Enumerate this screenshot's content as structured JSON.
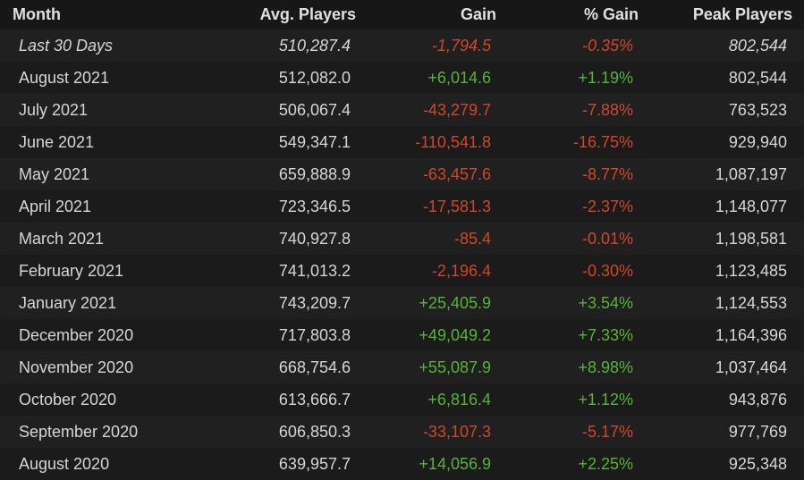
{
  "table": {
    "header": [
      "Month",
      "Avg. Players",
      "Gain",
      "% Gain",
      "Peak Players"
    ],
    "rows": [
      [
        "Last 30 Days",
        "510,287.4",
        "-1,794.5",
        "-0.35%",
        "802,544"
      ],
      [
        "August 2021",
        "512,082.0",
        "+6,014.6",
        "+1.19%",
        "802,544"
      ],
      [
        "July 2021",
        "506,067.4",
        "-43,279.7",
        "-7.88%",
        "763,523"
      ],
      [
        "June 2021",
        "549,347.1",
        "-110,541.8",
        "-16.75%",
        "929,940"
      ],
      [
        "May 2021",
        "659,888.9",
        "-63,457.6",
        "-8.77%",
        "1,087,197"
      ],
      [
        "April 2021",
        "723,346.5",
        "-17,581.3",
        "-2.37%",
        "1,148,077"
      ],
      [
        "March 2021",
        "740,927.8",
        "-85.4",
        "-0.01%",
        "1,198,581"
      ],
      [
        "February 2021",
        "741,013.2",
        "-2,196.4",
        "-0.30%",
        "1,123,485"
      ],
      [
        "January 2021",
        "743,209.7",
        "+25,405.9",
        "+3.54%",
        "1,124,553"
      ],
      [
        "December 2020",
        "717,803.8",
        "+49,049.2",
        "+7.33%",
        "1,164,396"
      ],
      [
        "November 2020",
        "668,754.6",
        "+55,087.9",
        "+8.98%",
        "1,037,464"
      ],
      [
        "October 2020",
        "613,666.7",
        "+6,816.4",
        "+1.12%",
        "943,876"
      ],
      [
        "September 2020",
        "606,850.3",
        "-33,107.3",
        "-5.17%",
        "977,769"
      ],
      [
        "August 2020",
        "639,957.7",
        "+14,056.9",
        "+2.25%",
        "925,348"
      ]
    ]
  }
}
